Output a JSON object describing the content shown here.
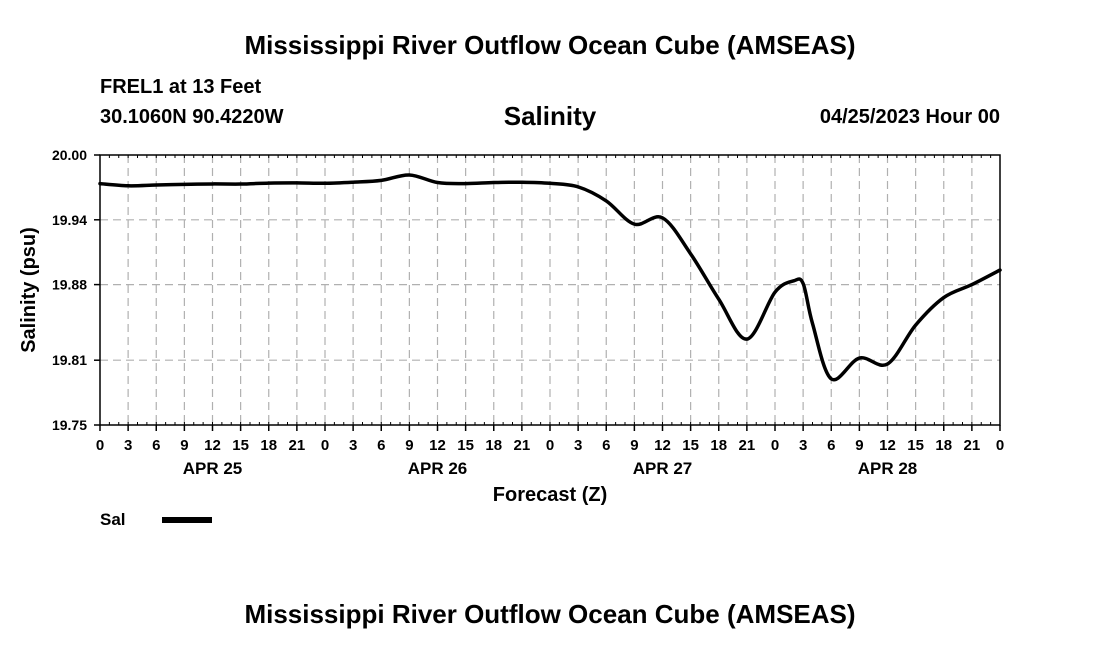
{
  "header": {
    "title": "Mississippi River Outflow Ocean Cube (AMSEAS)",
    "station": "FREL1 at 13 Feet",
    "coords": "30.1060N  90.4220W",
    "subtitle": "Salinity",
    "runtime": "04/25/2023 Hour 00"
  },
  "footer": {
    "title": "Mississippi River Outflow Ocean Cube (AMSEAS)"
  },
  "legend": {
    "label": "Sal",
    "color": "#000000"
  },
  "chart_data": {
    "type": "line",
    "title": "Salinity",
    "xlabel": "Forecast (Z)",
    "ylabel": "Salinity (psu)",
    "xlim": [
      0,
      96
    ],
    "ylim": [
      19.75,
      20.0
    ],
    "yticks": [
      "20.00",
      "19.94",
      "19.88",
      "19.81",
      "19.75"
    ],
    "ytick_values": [
      20.0,
      19.94,
      19.88,
      19.81,
      19.75
    ],
    "xtick_labels": [
      "0",
      "3",
      "6",
      "9",
      "12",
      "15",
      "18",
      "21",
      "0",
      "3",
      "6",
      "9",
      "12",
      "15",
      "18",
      "21",
      "0",
      "3",
      "6",
      "9",
      "12",
      "15",
      "18",
      "21",
      "0",
      "3",
      "6",
      "9",
      "12",
      "15",
      "18",
      "21",
      "0"
    ],
    "day_labels": [
      {
        "label": "APR 25",
        "hour": 12
      },
      {
        "label": "APR 26",
        "hour": 36
      },
      {
        "label": "APR 27",
        "hour": 60
      },
      {
        "label": "APR 28",
        "hour": 84
      }
    ],
    "grid": true,
    "series": [
      {
        "name": "Sal",
        "x": [
          0,
          3,
          6,
          9,
          12,
          15,
          18,
          21,
          24,
          27,
          30,
          33,
          36,
          39,
          42,
          45,
          48,
          51,
          54,
          57,
          60,
          63,
          66,
          69,
          72,
          74,
          75,
          76,
          78,
          81,
          84,
          87,
          90,
          93,
          96
        ],
        "values": [
          19.9735,
          19.9715,
          19.9722,
          19.9728,
          19.9732,
          19.9731,
          19.974,
          19.9742,
          19.9738,
          19.9748,
          19.9765,
          19.9815,
          19.9745,
          19.9735,
          19.9745,
          19.9748,
          19.9738,
          19.9705,
          19.9575,
          19.936,
          19.9418,
          19.9085,
          19.8665,
          19.8295,
          19.873,
          19.8835,
          19.881,
          19.844,
          19.7927,
          19.812,
          19.8065,
          19.8425,
          19.868,
          19.88,
          19.8935
        ]
      }
    ]
  }
}
